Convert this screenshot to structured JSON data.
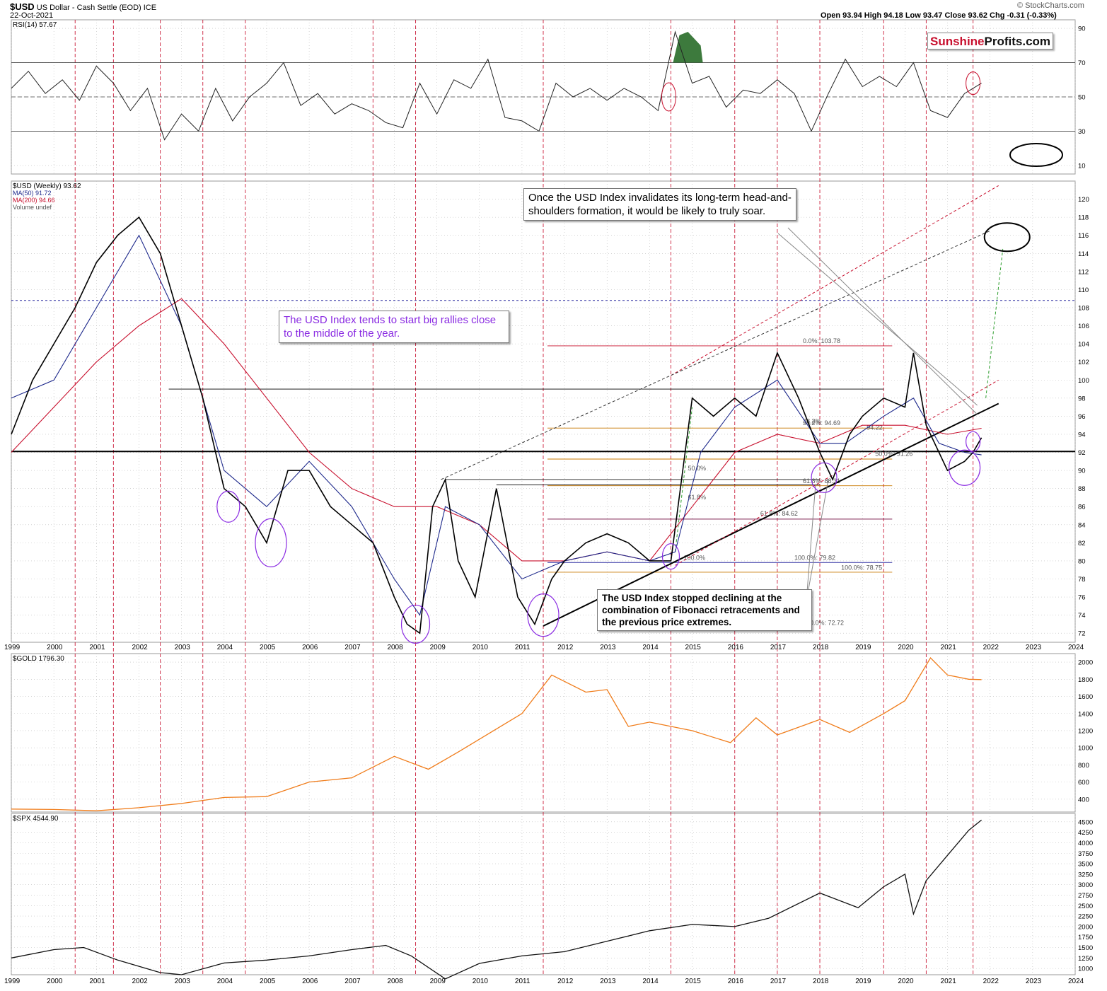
{
  "header": {
    "symbol": "$USD",
    "name": "US Dollar - Cash Settle (EOD) ICE",
    "date": "22-Oct-2021",
    "ohlc": "Open 93.94  High 94.18  Low 93.47  Close 93.62  Chg -0.31 (-0.33%)",
    "source": "© StockCharts.com"
  },
  "brand": {
    "part1": "Sunshine",
    "part2": "Profits.com"
  },
  "notes": {
    "hs": "Once the USD Index invalidates its long-term head-and-shoulders formation, it would be likely to truly soar.",
    "mid_year": "The USD Index tends to start big rallies close to the middle of the year.",
    "fib": "The USD Index stopped declining at the combination of Fibonacci retracements and the previous price extremes."
  },
  "colors": {
    "price": "#000000",
    "down_bar": "#c8102e",
    "ma50": "#1f2a8c",
    "ma200": "#c8102e",
    "gold": "#f07c1a",
    "spx": "#111111",
    "cycle_line": "#c8102e",
    "highlight": "#8a2be2",
    "rsi_fill": "#3d7a3d"
  },
  "chart_data": [
    {
      "panel": "rsi",
      "type": "line",
      "legend": "RSI(14) 57.67",
      "ylim": [
        5,
        95
      ],
      "yticks": [
        10,
        30,
        50,
        70,
        90
      ],
      "levels": [
        30,
        50,
        70
      ],
      "x": [
        1999.0,
        1999.4,
        1999.8,
        2000.2,
        2000.6,
        2001.0,
        2001.4,
        2001.8,
        2002.2,
        2002.6,
        2003.0,
        2003.4,
        2003.8,
        2004.2,
        2004.6,
        2005.0,
        2005.4,
        2005.8,
        2006.2,
        2006.6,
        2007.0,
        2007.4,
        2007.8,
        2008.2,
        2008.6,
        2009.0,
        2009.4,
        2009.8,
        2010.2,
        2010.6,
        2011.0,
        2011.4,
        2011.8,
        2012.2,
        2012.6,
        2013.0,
        2013.4,
        2013.8,
        2014.2,
        2014.6,
        2015.0,
        2015.4,
        2015.8,
        2016.2,
        2016.6,
        2017.0,
        2017.4,
        2017.8,
        2018.2,
        2018.6,
        2019.0,
        2019.4,
        2019.8,
        2020.2,
        2020.6,
        2021.0,
        2021.4,
        2021.8
      ],
      "values": [
        55,
        65,
        52,
        60,
        48,
        68,
        58,
        42,
        55,
        25,
        40,
        30,
        55,
        36,
        50,
        58,
        70,
        45,
        52,
        40,
        46,
        42,
        35,
        32,
        58,
        40,
        60,
        55,
        72,
        38,
        36,
        30,
        58,
        50,
        55,
        48,
        55,
        50,
        42,
        88,
        58,
        62,
        44,
        54,
        52,
        60,
        52,
        30,
        52,
        72,
        56,
        62,
        56,
        70,
        42,
        38,
        52,
        58
      ]
    },
    {
      "panel": "usd",
      "type": "line",
      "legend": [
        "$USD (Weekly) 93.62",
        "MA(50) 91.72",
        "MA(200) 94.66",
        "Volume undef"
      ],
      "ylim": [
        71,
        122
      ],
      "yticks": [
        72,
        74,
        76,
        78,
        80,
        82,
        84,
        86,
        88,
        90,
        92,
        94,
        96,
        98,
        100,
        102,
        104,
        106,
        108,
        110,
        112,
        114,
        116,
        118,
        120
      ],
      "x": [
        1999.0,
        1999.5,
        2000.0,
        2000.5,
        2001.0,
        2001.5,
        2002.0,
        2002.5,
        2003.0,
        2003.5,
        2004.0,
        2004.5,
        2005.0,
        2005.5,
        2006.0,
        2006.5,
        2007.0,
        2007.5,
        2008.0,
        2008.3,
        2008.6,
        2008.9,
        2009.2,
        2009.5,
        2009.9,
        2010.4,
        2010.9,
        2011.3,
        2011.7,
        2012.0,
        2012.5,
        2013.0,
        2013.5,
        2014.0,
        2014.5,
        2015.0,
        2015.5,
        2016.0,
        2016.5,
        2017.0,
        2017.5,
        2018.0,
        2018.3,
        2018.7,
        2019.0,
        2019.5,
        2020.0,
        2020.2,
        2020.5,
        2021.0,
        2021.4,
        2021.6,
        2021.8
      ],
      "values": [
        94,
        100,
        104,
        108,
        113,
        116,
        118,
        114,
        106,
        98,
        88,
        86,
        82,
        90,
        90,
        86,
        84,
        82,
        76,
        73,
        72,
        86,
        89,
        80,
        76,
        88,
        76,
        73,
        78,
        80,
        82,
        83,
        82,
        80,
        80,
        98,
        96,
        98,
        96,
        103,
        98,
        92,
        89,
        94,
        96,
        98,
        97,
        103,
        95,
        90,
        91,
        92,
        93.62
      ],
      "ma50_x": [
        1999.0,
        2000.0,
        2001.0,
        2002.0,
        2003.0,
        2004.0,
        2005.0,
        2006.0,
        2007.0,
        2008.0,
        2008.6,
        2009.2,
        2010.0,
        2011.0,
        2012.0,
        2013.0,
        2014.0,
        2014.6,
        2015.2,
        2016.0,
        2017.0,
        2018.0,
        2018.6,
        2019.5,
        2020.2,
        2020.8,
        2021.4,
        2021.8
      ],
      "ma50": [
        98,
        100,
        108,
        116,
        106,
        90,
        86,
        91,
        86,
        78,
        74,
        86,
        84,
        78,
        80,
        81,
        80,
        81,
        92,
        97,
        100,
        93,
        93,
        96,
        98,
        93,
        92,
        91.72
      ],
      "ma200_x": [
        1999.0,
        2000.0,
        2001.0,
        2002.0,
        2003.0,
        2004.0,
        2005.0,
        2006.0,
        2007.0,
        2008.0,
        2009.0,
        2010.0,
        2011.0,
        2012.0,
        2013.0,
        2014.0,
        2015.0,
        2016.0,
        2017.0,
        2018.0,
        2019.0,
        2020.0,
        2021.0,
        2021.8
      ],
      "ma200": [
        92,
        97,
        102,
        106,
        109,
        104,
        98,
        92,
        88,
        86,
        86,
        84,
        80,
        80,
        81,
        80,
        86,
        92,
        94,
        93,
        95,
        95,
        94,
        94.66
      ],
      "hlines": [
        92.1,
        108.8,
        99,
        89,
        88.4
      ],
      "fib_labels": [
        "0.0%: 103.78",
        "38.2%: 94.69",
        "50.0%: 91.26",
        "61.8%: 88.31",
        "61.8%: 84.62",
        "100.0%: 79.82",
        "100.0%: 78.75",
        "100.0%: 72.72",
        "50.0%",
        "61.8%",
        "100.0%",
        "38.2%",
        "94.22"
      ]
    },
    {
      "panel": "gold",
      "type": "line",
      "legend": "$GOLD 1796.30",
      "ylim": [
        250,
        2100
      ],
      "yticks": [
        400,
        600,
        800,
        1000,
        1200,
        1400,
        1600,
        1800,
        2000
      ],
      "x": [
        1999.0,
        2000.0,
        2001.0,
        2002.0,
        2003.0,
        2004.0,
        2005.0,
        2006.0,
        2007.0,
        2008.0,
        2008.8,
        2009.5,
        2010.5,
        2011.0,
        2011.7,
        2012.5,
        2013.0,
        2013.5,
        2014.0,
        2015.0,
        2015.9,
        2016.5,
        2017.0,
        2018.0,
        2018.7,
        2019.5,
        2020.0,
        2020.6,
        2021.0,
        2021.5,
        2021.8
      ],
      "values": [
        285,
        280,
        265,
        300,
        350,
        420,
        430,
        600,
        650,
        900,
        750,
        950,
        1250,
        1400,
        1850,
        1650,
        1680,
        1250,
        1300,
        1200,
        1060,
        1350,
        1150,
        1330,
        1180,
        1400,
        1550,
        2050,
        1850,
        1800,
        1796.3
      ]
    },
    {
      "panel": "spx",
      "type": "line",
      "legend": "$SPX 4544.90",
      "ylim": [
        850,
        4700
      ],
      "yticks": [
        1000,
        1250,
        1500,
        1750,
        2000,
        2250,
        2500,
        2750,
        3000,
        3250,
        3500,
        3750,
        4000,
        4250,
        4500
      ],
      "x": [
        1999.0,
        2000.0,
        2000.7,
        2001.5,
        2002.5,
        2003.0,
        2004.0,
        2005.0,
        2006.0,
        2007.0,
        2007.8,
        2008.4,
        2009.2,
        2010.0,
        2011.0,
        2012.0,
        2013.0,
        2014.0,
        2015.0,
        2016.0,
        2016.8,
        2018.0,
        2018.9,
        2019.5,
        2020.0,
        2020.2,
        2020.5,
        2021.0,
        2021.5,
        2021.8
      ],
      "values": [
        1250,
        1450,
        1500,
        1200,
        900,
        850,
        1130,
        1200,
        1300,
        1450,
        1550,
        1300,
        750,
        1120,
        1300,
        1400,
        1650,
        1900,
        2050,
        2000,
        2200,
        2800,
        2450,
        2950,
        3250,
        2300,
        3100,
        3700,
        4300,
        4544.9
      ]
    }
  ],
  "x_axis": {
    "years": [
      "1999",
      "2000",
      "2001",
      "2002",
      "2003",
      "2004",
      "2005",
      "2006",
      "2007",
      "2008",
      "2009",
      "2010",
      "2011",
      "2012",
      "2013",
      "2014",
      "2015",
      "2016",
      "2017",
      "2018",
      "2019",
      "2020",
      "2021",
      "2022",
      "2023",
      "2024"
    ]
  },
  "cycle_lines": [
    2000.5,
    2001.4,
    2002.5,
    2003.5,
    2004.5,
    2007.5,
    2008.5,
    2011.5,
    2014.5,
    2016.0,
    2017.0,
    2018.0,
    2019.5,
    2020.5,
    2021.6
  ]
}
